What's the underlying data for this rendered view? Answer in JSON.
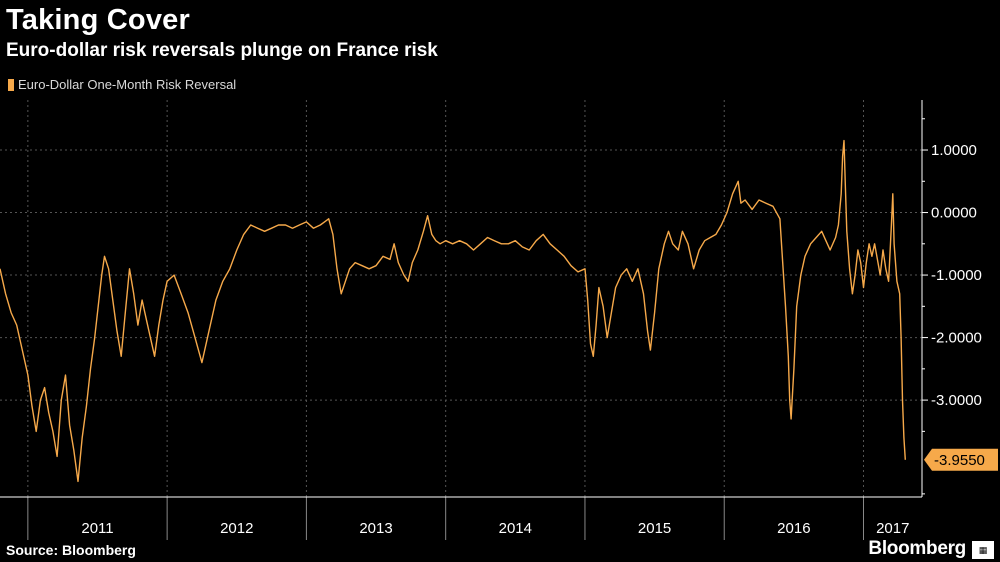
{
  "header": {
    "title": "Taking Cover",
    "subtitle": "Euro-dollar risk reversals plunge on France risk"
  },
  "footer": {
    "source": "Source: Bloomberg",
    "brand": "Bloomberg"
  },
  "colors": {
    "background": "#000000",
    "series": "#f6a94a",
    "grid": "#555555",
    "callout_bg": "#f6a94a"
  },
  "chart_data": {
    "type": "line",
    "title": "Taking Cover",
    "subtitle": "Euro-dollar risk reversals plunge on France risk",
    "xlabel": "",
    "ylabel": "",
    "ylim": [
      -4.55,
      1.8
    ],
    "xlim": [
      2010.8,
      2017.42
    ],
    "y_ticks": [
      1,
      0,
      -1,
      -2,
      -3
    ],
    "y_tick_labels": [
      "1.0000",
      "0.0000",
      "-1.0000",
      "-2.0000",
      "-3.0000"
    ],
    "x_ticks": [
      2011,
      2012,
      2013,
      2014,
      2015,
      2016,
      2017
    ],
    "x_tick_labels": [
      "2011",
      "2012",
      "2013",
      "2014",
      "2015",
      "2016",
      "2017"
    ],
    "y_axis_position": "right",
    "grid": true,
    "legend": "top-left",
    "last_value_label": "-3.9550",
    "series": [
      {
        "name": "Euro-Dollar One-Month Risk Reversal",
        "points": [
          [
            2010.8,
            -0.9
          ],
          [
            2010.84,
            -1.3
          ],
          [
            2010.88,
            -1.6
          ],
          [
            2010.92,
            -1.8
          ],
          [
            2010.96,
            -2.2
          ],
          [
            2011.0,
            -2.6
          ],
          [
            2011.03,
            -3.1
          ],
          [
            2011.06,
            -3.5
          ],
          [
            2011.09,
            -3.0
          ],
          [
            2011.12,
            -2.8
          ],
          [
            2011.15,
            -3.2
          ],
          [
            2011.18,
            -3.5
          ],
          [
            2011.21,
            -3.9
          ],
          [
            2011.24,
            -3.0
          ],
          [
            2011.27,
            -2.6
          ],
          [
            2011.3,
            -3.4
          ],
          [
            2011.33,
            -3.8
          ],
          [
            2011.36,
            -4.3
          ],
          [
            2011.39,
            -3.6
          ],
          [
            2011.42,
            -3.1
          ],
          [
            2011.45,
            -2.5
          ],
          [
            2011.48,
            -2.0
          ],
          [
            2011.5,
            -1.6
          ],
          [
            2011.53,
            -1.0
          ],
          [
            2011.55,
            -0.7
          ],
          [
            2011.58,
            -0.9
          ],
          [
            2011.61,
            -1.4
          ],
          [
            2011.64,
            -1.9
          ],
          [
            2011.67,
            -2.3
          ],
          [
            2011.7,
            -1.6
          ],
          [
            2011.73,
            -0.9
          ],
          [
            2011.76,
            -1.3
          ],
          [
            2011.79,
            -1.8
          ],
          [
            2011.82,
            -1.4
          ],
          [
            2011.85,
            -1.7
          ],
          [
            2011.88,
            -2.0
          ],
          [
            2011.91,
            -2.3
          ],
          [
            2011.94,
            -1.8
          ],
          [
            2011.97,
            -1.4
          ],
          [
            2012.0,
            -1.1
          ],
          [
            2012.05,
            -1.0
          ],
          [
            2012.1,
            -1.3
          ],
          [
            2012.15,
            -1.6
          ],
          [
            2012.2,
            -2.0
          ],
          [
            2012.25,
            -2.4
          ],
          [
            2012.3,
            -1.9
          ],
          [
            2012.35,
            -1.4
          ],
          [
            2012.4,
            -1.1
          ],
          [
            2012.45,
            -0.9
          ],
          [
            2012.5,
            -0.6
          ],
          [
            2012.55,
            -0.35
          ],
          [
            2012.6,
            -0.2
          ],
          [
            2012.65,
            -0.25
          ],
          [
            2012.7,
            -0.3
          ],
          [
            2012.75,
            -0.25
          ],
          [
            2012.8,
            -0.2
          ],
          [
            2012.85,
            -0.2
          ],
          [
            2012.9,
            -0.25
          ],
          [
            2012.95,
            -0.2
          ],
          [
            2013.0,
            -0.15
          ],
          [
            2013.05,
            -0.25
          ],
          [
            2013.1,
            -0.2
          ],
          [
            2013.13,
            -0.15
          ],
          [
            2013.16,
            -0.1
          ],
          [
            2013.19,
            -0.35
          ],
          [
            2013.22,
            -0.9
          ],
          [
            2013.25,
            -1.3
          ],
          [
            2013.28,
            -1.1
          ],
          [
            2013.31,
            -0.9
          ],
          [
            2013.35,
            -0.8
          ],
          [
            2013.4,
            -0.85
          ],
          [
            2013.45,
            -0.9
          ],
          [
            2013.5,
            -0.85
          ],
          [
            2013.55,
            -0.7
          ],
          [
            2013.6,
            -0.75
          ],
          [
            2013.63,
            -0.5
          ],
          [
            2013.66,
            -0.8
          ],
          [
            2013.7,
            -1.0
          ],
          [
            2013.73,
            -1.1
          ],
          [
            2013.76,
            -0.8
          ],
          [
            2013.8,
            -0.6
          ],
          [
            2013.84,
            -0.3
          ],
          [
            2013.87,
            -0.05
          ],
          [
            2013.9,
            -0.35
          ],
          [
            2013.93,
            -0.45
          ],
          [
            2013.96,
            -0.5
          ],
          [
            2014.0,
            -0.45
          ],
          [
            2014.05,
            -0.5
          ],
          [
            2014.1,
            -0.45
          ],
          [
            2014.15,
            -0.5
          ],
          [
            2014.2,
            -0.6
          ],
          [
            2014.25,
            -0.5
          ],
          [
            2014.3,
            -0.4
          ],
          [
            2014.35,
            -0.45
          ],
          [
            2014.4,
            -0.5
          ],
          [
            2014.45,
            -0.5
          ],
          [
            2014.5,
            -0.45
          ],
          [
            2014.55,
            -0.55
          ],
          [
            2014.6,
            -0.6
          ],
          [
            2014.65,
            -0.45
          ],
          [
            2014.7,
            -0.35
          ],
          [
            2014.75,
            -0.5
          ],
          [
            2014.8,
            -0.6
          ],
          [
            2014.85,
            -0.7
          ],
          [
            2014.9,
            -0.85
          ],
          [
            2014.95,
            -0.95
          ],
          [
            2015.0,
            -0.9
          ],
          [
            2015.02,
            -1.4
          ],
          [
            2015.04,
            -2.1
          ],
          [
            2015.06,
            -2.3
          ],
          [
            2015.08,
            -1.8
          ],
          [
            2015.1,
            -1.2
          ],
          [
            2015.13,
            -1.5
          ],
          [
            2015.16,
            -2.0
          ],
          [
            2015.19,
            -1.6
          ],
          [
            2015.22,
            -1.2
          ],
          [
            2015.26,
            -1.0
          ],
          [
            2015.3,
            -0.9
          ],
          [
            2015.34,
            -1.1
          ],
          [
            2015.38,
            -0.9
          ],
          [
            2015.42,
            -1.3
          ],
          [
            2015.45,
            -1.9
          ],
          [
            2015.47,
            -2.2
          ],
          [
            2015.5,
            -1.6
          ],
          [
            2015.53,
            -0.9
          ],
          [
            2015.57,
            -0.5
          ],
          [
            2015.6,
            -0.3
          ],
          [
            2015.63,
            -0.5
          ],
          [
            2015.67,
            -0.6
          ],
          [
            2015.7,
            -0.3
          ],
          [
            2015.74,
            -0.5
          ],
          [
            2015.78,
            -0.9
          ],
          [
            2015.82,
            -0.6
          ],
          [
            2015.86,
            -0.45
          ],
          [
            2015.9,
            -0.4
          ],
          [
            2015.94,
            -0.35
          ],
          [
            2015.98,
            -0.2
          ],
          [
            2016.02,
            0.0
          ],
          [
            2016.06,
            0.3
          ],
          [
            2016.1,
            0.5
          ],
          [
            2016.12,
            0.15
          ],
          [
            2016.15,
            0.2
          ],
          [
            2016.2,
            0.05
          ],
          [
            2016.25,
            0.2
          ],
          [
            2016.3,
            0.15
          ],
          [
            2016.35,
            0.1
          ],
          [
            2016.4,
            -0.1
          ],
          [
            2016.42,
            -0.8
          ],
          [
            2016.44,
            -1.5
          ],
          [
            2016.46,
            -2.3
          ],
          [
            2016.47,
            -3.0
          ],
          [
            2016.48,
            -3.3
          ],
          [
            2016.5,
            -2.5
          ],
          [
            2016.52,
            -1.5
          ],
          [
            2016.55,
            -1.0
          ],
          [
            2016.58,
            -0.7
          ],
          [
            2016.62,
            -0.5
          ],
          [
            2016.66,
            -0.4
          ],
          [
            2016.7,
            -0.3
          ],
          [
            2016.73,
            -0.45
          ],
          [
            2016.76,
            -0.6
          ],
          [
            2016.8,
            -0.4
          ],
          [
            2016.82,
            -0.2
          ],
          [
            2016.84,
            0.3
          ],
          [
            2016.85,
            0.9
          ],
          [
            2016.86,
            1.15
          ],
          [
            2016.87,
            0.4
          ],
          [
            2016.88,
            -0.3
          ],
          [
            2016.9,
            -0.9
          ],
          [
            2016.92,
            -1.3
          ],
          [
            2016.94,
            -1.0
          ],
          [
            2016.96,
            -0.6
          ],
          [
            2016.98,
            -0.8
          ],
          [
            2017.0,
            -1.2
          ],
          [
            2017.02,
            -0.8
          ],
          [
            2017.04,
            -0.5
          ],
          [
            2017.06,
            -0.7
          ],
          [
            2017.08,
            -0.5
          ],
          [
            2017.1,
            -0.75
          ],
          [
            2017.12,
            -1.0
          ],
          [
            2017.14,
            -0.6
          ],
          [
            2017.16,
            -0.9
          ],
          [
            2017.18,
            -1.1
          ],
          [
            2017.2,
            -0.2
          ],
          [
            2017.21,
            0.3
          ],
          [
            2017.22,
            -0.5
          ],
          [
            2017.24,
            -1.1
          ],
          [
            2017.26,
            -1.3
          ],
          [
            2017.27,
            -2.0
          ],
          [
            2017.28,
            -3.0
          ],
          [
            2017.29,
            -3.6
          ],
          [
            2017.3,
            -3.955
          ]
        ]
      }
    ]
  }
}
